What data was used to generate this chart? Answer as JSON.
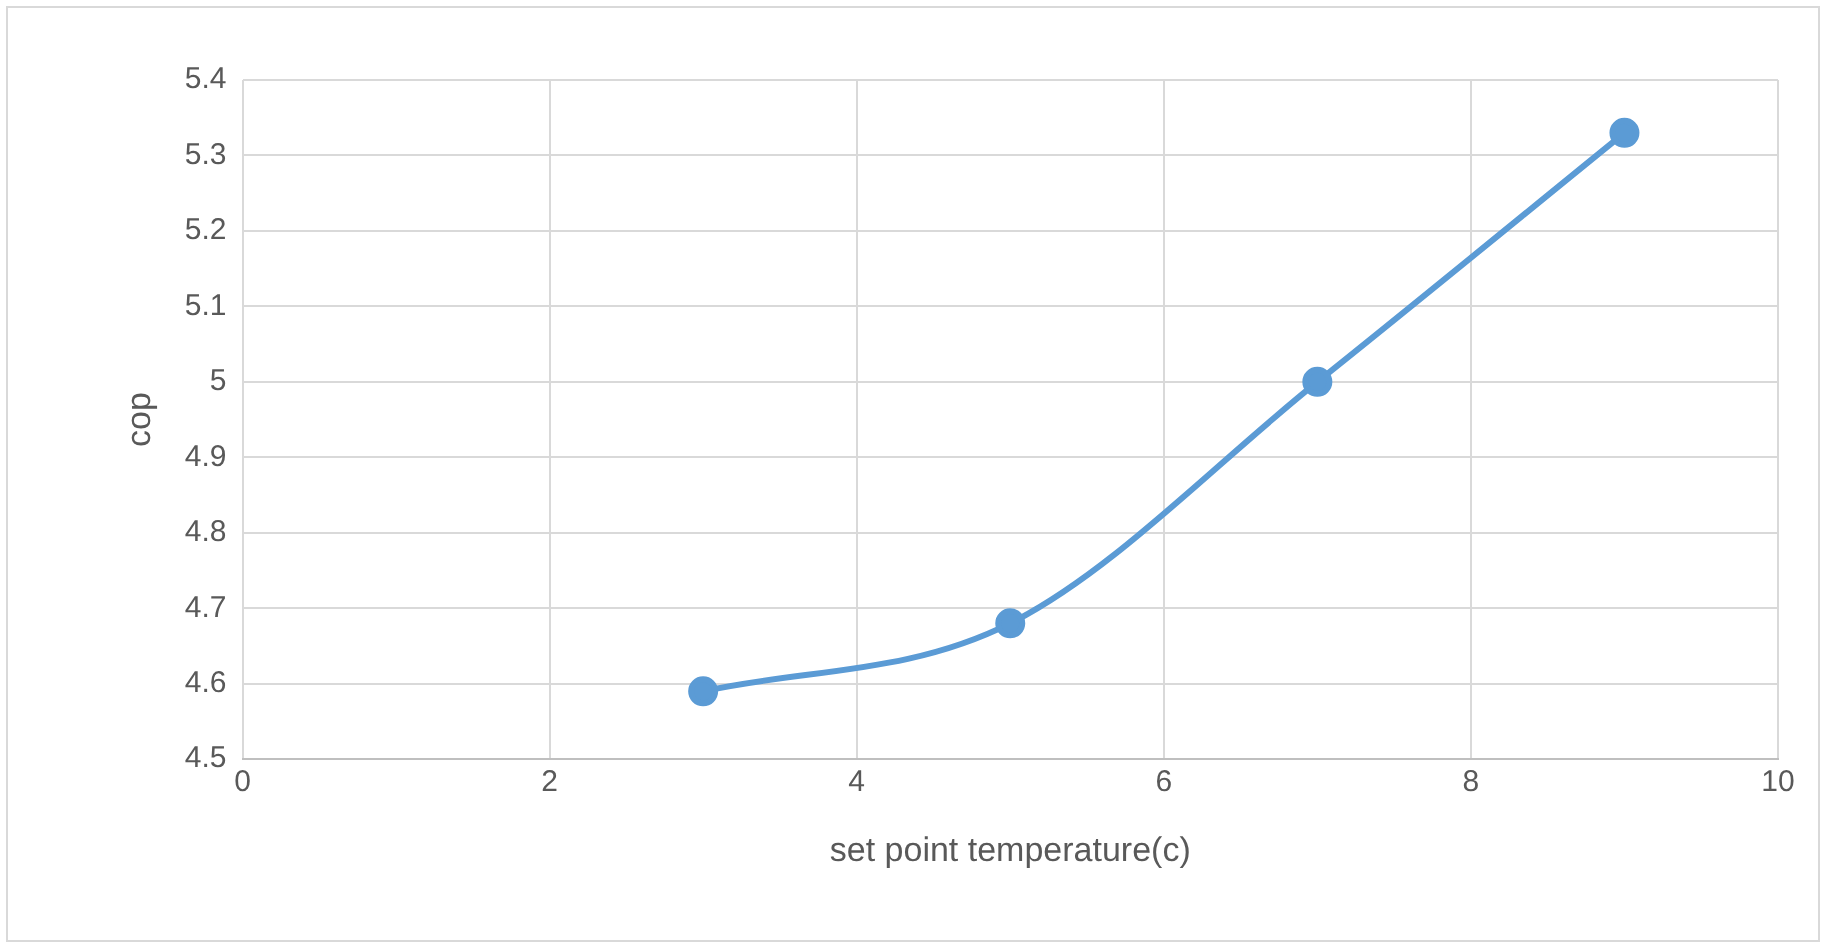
{
  "chart_data": {
    "type": "line",
    "xlabel": "set point temperature(c)",
    "ylabel": "cop",
    "x": [
      3,
      5,
      7,
      9
    ],
    "series": [
      {
        "color": "#5b9bd5",
        "values": [
          4.59,
          4.68,
          5.0,
          5.33
        ]
      }
    ],
    "xlim": [
      0,
      10
    ],
    "xticks": [
      0,
      2,
      4,
      6,
      8,
      10
    ],
    "ylim": [
      4.5,
      5.4
    ],
    "yticks": [
      {
        "value": 4.5,
        "label": "4.5"
      },
      {
        "value": 4.6,
        "label": "4.6"
      },
      {
        "value": 4.7,
        "label": "4.7"
      },
      {
        "value": 4.8,
        "label": "4.8"
      },
      {
        "value": 4.9,
        "label": "4.9"
      },
      {
        "value": 5,
        "label": "5"
      },
      {
        "value": 5.1,
        "label": "5.1"
      },
      {
        "value": 5.2,
        "label": "5.2"
      },
      {
        "value": 5.3,
        "label": "5.3"
      },
      {
        "value": 5.4,
        "label": "5.4"
      }
    ],
    "grid": true,
    "marker": "circle",
    "legend": false
  }
}
